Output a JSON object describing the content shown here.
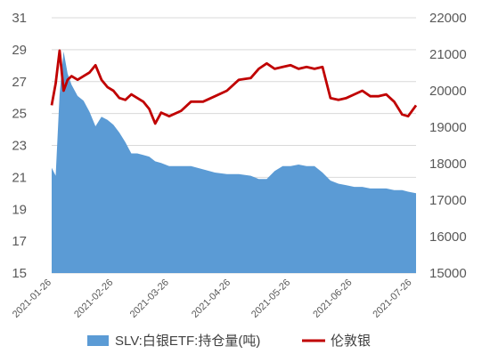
{
  "chart_data": {
    "type": "area+line",
    "title": "",
    "grid": true,
    "legend_position": "bottom",
    "x_tick_labels": [
      "2021-01-26",
      "2021-02-26",
      "2021-03-26",
      "2021-04-26",
      "2021-05-26",
      "2021-06-26",
      "2021-07-26"
    ],
    "y_left": {
      "ylim": [
        15,
        31
      ],
      "ticks": [
        15,
        17,
        19,
        21,
        23,
        25,
        27,
        29,
        31
      ]
    },
    "y_right": {
      "ylim": [
        15000,
        22000
      ],
      "ticks": [
        15000,
        16000,
        17000,
        18000,
        19000,
        20000,
        21000,
        22000
      ]
    },
    "series": [
      {
        "name": "SLV:白银ETF:持仓量(吨)",
        "type": "area",
        "axis": "left",
        "color": "#5b9bd5",
        "x": [
          "2021-01-26",
          "2021-01-28",
          "2021-01-30",
          "2021-02-01",
          "2021-02-03",
          "2021-02-05",
          "2021-02-08",
          "2021-02-11",
          "2021-02-14",
          "2021-02-17",
          "2021-02-20",
          "2021-02-23",
          "2021-02-26",
          "2021-03-01",
          "2021-03-04",
          "2021-03-07",
          "2021-03-10",
          "2021-03-13",
          "2021-03-16",
          "2021-03-19",
          "2021-03-22",
          "2021-03-26",
          "2021-04-01",
          "2021-04-06",
          "2021-04-12",
          "2021-04-18",
          "2021-04-24",
          "2021-04-30",
          "2021-05-06",
          "2021-05-10",
          "2021-05-14",
          "2021-05-18",
          "2021-05-22",
          "2021-05-26",
          "2021-05-30",
          "2021-06-03",
          "2021-06-07",
          "2021-06-11",
          "2021-06-15",
          "2021-06-19",
          "2021-06-23",
          "2021-06-27",
          "2021-07-01",
          "2021-07-05",
          "2021-07-09",
          "2021-07-13",
          "2021-07-17",
          "2021-07-21",
          "2021-07-24",
          "2021-07-28"
        ],
        "values": [
          21.6,
          21.1,
          26.2,
          28.9,
          27.5,
          26.8,
          26.1,
          25.8,
          25.1,
          24.2,
          24.8,
          24.6,
          24.3,
          23.8,
          23.2,
          22.5,
          22.5,
          22.4,
          22.3,
          22.0,
          21.9,
          21.7,
          21.7,
          21.7,
          21.5,
          21.3,
          21.2,
          21.2,
          21.1,
          20.9,
          20.9,
          21.4,
          21.7,
          21.7,
          21.8,
          21.7,
          21.7,
          21.3,
          20.8,
          20.6,
          20.5,
          20.4,
          20.4,
          20.3,
          20.3,
          20.3,
          20.2,
          20.2,
          20.1,
          20.0
        ]
      },
      {
        "name": "伦敦银",
        "type": "line",
        "axis": "right",
        "color": "#c00000",
        "x": [
          "2021-01-26",
          "2021-01-28",
          "2021-01-30",
          "2021-02-01",
          "2021-02-03",
          "2021-02-05",
          "2021-02-08",
          "2021-02-11",
          "2021-02-14",
          "2021-02-17",
          "2021-02-20",
          "2021-02-23",
          "2021-02-26",
          "2021-03-01",
          "2021-03-04",
          "2021-03-07",
          "2021-03-10",
          "2021-03-13",
          "2021-03-16",
          "2021-03-19",
          "2021-03-22",
          "2021-03-26",
          "2021-04-01",
          "2021-04-06",
          "2021-04-12",
          "2021-04-18",
          "2021-04-24",
          "2021-04-30",
          "2021-05-06",
          "2021-05-10",
          "2021-05-14",
          "2021-05-18",
          "2021-05-22",
          "2021-05-26",
          "2021-05-30",
          "2021-06-03",
          "2021-06-07",
          "2021-06-11",
          "2021-06-15",
          "2021-06-19",
          "2021-06-23",
          "2021-06-27",
          "2021-07-01",
          "2021-07-05",
          "2021-07-09",
          "2021-07-13",
          "2021-07-17",
          "2021-07-21",
          "2021-07-24",
          "2021-07-28"
        ],
        "values": [
          19600,
          20200,
          21100,
          20000,
          20300,
          20400,
          20300,
          20400,
          20500,
          20700,
          20300,
          20100,
          20000,
          19800,
          19750,
          19900,
          19800,
          19700,
          19500,
          19100,
          19400,
          19300,
          19450,
          19700,
          19700,
          19850,
          20000,
          20300,
          20350,
          20600,
          20750,
          20600,
          20650,
          20700,
          20600,
          20650,
          20600,
          20650,
          19800,
          19750,
          19800,
          19900,
          20000,
          19850,
          19850,
          19900,
          19700,
          19350,
          19300,
          19600
        ]
      }
    ]
  }
}
